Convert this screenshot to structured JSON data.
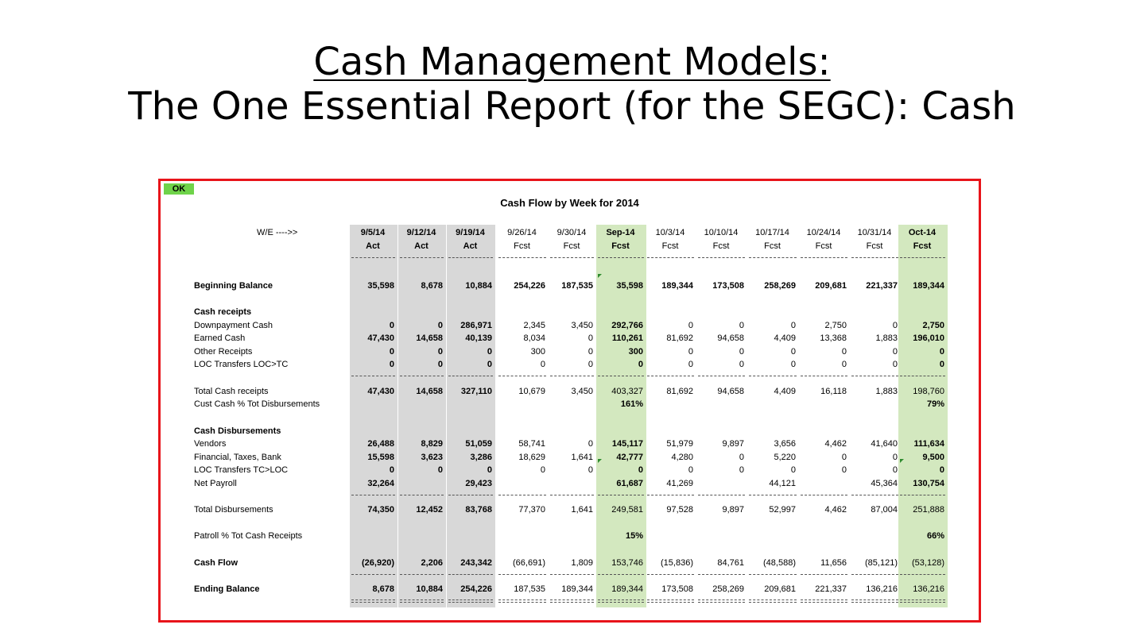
{
  "slide": {
    "title_line1": "Cash Management Models:",
    "title_line2": "The One Essential Report (for the SEGC):  Cash"
  },
  "sheet": {
    "status_badge": "OK",
    "title": "Cash Flow by Week for 2014",
    "we_label": "W/E ---->>",
    "columns": [
      {
        "date": "9/5/14",
        "type": "Act",
        "shade": "gray"
      },
      {
        "date": "9/12/14",
        "type": "Act",
        "shade": "gray"
      },
      {
        "date": "9/19/14",
        "type": "Act",
        "shade": "gray"
      },
      {
        "date": "9/26/14",
        "type": "Fcst",
        "shade": "none"
      },
      {
        "date": "9/30/14",
        "type": "Fcst",
        "shade": "none"
      },
      {
        "date": "Sep-14",
        "type": "Fcst",
        "shade": "green"
      },
      {
        "date": "10/3/14",
        "type": "Fcst",
        "shade": "none"
      },
      {
        "date": "10/10/14",
        "type": "Fcst",
        "shade": "none"
      },
      {
        "date": "10/17/14",
        "type": "Fcst",
        "shade": "none"
      },
      {
        "date": "10/24/14",
        "type": "Fcst",
        "shade": "none"
      },
      {
        "date": "10/31/14",
        "type": "Fcst",
        "shade": "none"
      },
      {
        "date": "Oct-14",
        "type": "Fcst",
        "shade": "green"
      }
    ],
    "rows": [
      {
        "label": "Beginning Balance",
        "label_bold": true,
        "values": [
          "35,598",
          "8,678",
          "10,884",
          "254,226",
          "187,535",
          "35,598",
          "189,344",
          "173,508",
          "258,269",
          "209,681",
          "221,337",
          "189,344"
        ]
      },
      {
        "label": "Cash receipts",
        "label_bold": true,
        "values": []
      },
      {
        "label": "Downpayment Cash",
        "label_bold": false,
        "values": [
          "0",
          "0",
          "286,971",
          "2,345",
          "3,450",
          "292,766",
          "0",
          "0",
          "0",
          "2,750",
          "0",
          "2,750"
        ]
      },
      {
        "label": "Earned Cash",
        "label_bold": false,
        "values": [
          "47,430",
          "14,658",
          "40,139",
          "8,034",
          "0",
          "110,261",
          "81,692",
          "94,658",
          "4,409",
          "13,368",
          "1,883",
          "196,010"
        ]
      },
      {
        "label": "Other Receipts",
        "label_bold": false,
        "values": [
          "0",
          "0",
          "0",
          "300",
          "0",
          "300",
          "0",
          "0",
          "0",
          "0",
          "0",
          "0"
        ]
      },
      {
        "label": "LOC Transfers LOC>TC",
        "label_bold": false,
        "values": [
          "0",
          "0",
          "0",
          "0",
          "0",
          "0",
          "0",
          "0",
          "0",
          "0",
          "0",
          "0"
        ]
      },
      {
        "label": "Total Cash receipts",
        "label_bold": false,
        "values": [
          "47,430",
          "14,658",
          "327,110",
          "10,679",
          "3,450",
          "403,327",
          "81,692",
          "94,658",
          "4,409",
          "16,118",
          "1,883",
          "198,760"
        ]
      },
      {
        "label": "Cust Cash % Tot Disbursements",
        "label_bold": false,
        "values": [
          "",
          "",
          "",
          "",
          "",
          "161%",
          "",
          "",
          "",
          "",
          "",
          "79%"
        ]
      },
      {
        "label": "Cash Disbursements",
        "label_bold": true,
        "values": []
      },
      {
        "label": "Vendors",
        "label_bold": false,
        "values": [
          "26,488",
          "8,829",
          "51,059",
          "58,741",
          "0",
          "145,117",
          "51,979",
          "9,897",
          "3,656",
          "4,462",
          "41,640",
          "111,634"
        ]
      },
      {
        "label": "Financial, Taxes, Bank",
        "label_bold": false,
        "values": [
          "15,598",
          "3,623",
          "3,286",
          "18,629",
          "1,641",
          "42,777",
          "4,280",
          "0",
          "5,220",
          "0",
          "0",
          "9,500"
        ]
      },
      {
        "label": "LOC Transfers TC>LOC",
        "label_bold": false,
        "values": [
          "0",
          "0",
          "0",
          "0",
          "0",
          "0",
          "0",
          "0",
          "0",
          "0",
          "0",
          "0"
        ]
      },
      {
        "label": "Net Payroll",
        "label_bold": false,
        "values": [
          "32,264",
          "",
          "29,423",
          "",
          "",
          "61,687",
          "41,269",
          "",
          "44,121",
          "",
          "45,364",
          "130,754"
        ]
      },
      {
        "label": "Total Disbursements",
        "label_bold": false,
        "values": [
          "74,350",
          "12,452",
          "83,768",
          "77,370",
          "1,641",
          "249,581",
          "97,528",
          "9,897",
          "52,997",
          "4,462",
          "87,004",
          "251,888"
        ]
      },
      {
        "label": "Patroll % Tot Cash Receipts",
        "label_bold": false,
        "values": [
          "",
          "",
          "",
          "",
          "",
          "15%",
          "",
          "",
          "",
          "",
          "",
          "66%"
        ]
      },
      {
        "label": "Cash Flow",
        "label_bold": true,
        "values": [
          "(26,920)",
          "2,206",
          "243,342",
          "(66,691)",
          "1,809",
          "153,746",
          "(15,836)",
          "84,761",
          "(48,588)",
          "11,656",
          "(85,121)",
          "(53,128)"
        ]
      },
      {
        "label": "Ending Balance",
        "label_bold": true,
        "values": [
          "8,678",
          "10,884",
          "254,226",
          "187,535",
          "189,344",
          "189,344",
          "173,508",
          "258,269",
          "209,681",
          "221,337",
          "136,216",
          "136,216"
        ]
      }
    ]
  },
  "colors": {
    "frame_border": "#e8141a",
    "ok_badge": "#6fd34a",
    "actual_shade": "#d8d8d8",
    "month_total_shade": "#d3e8bf"
  }
}
